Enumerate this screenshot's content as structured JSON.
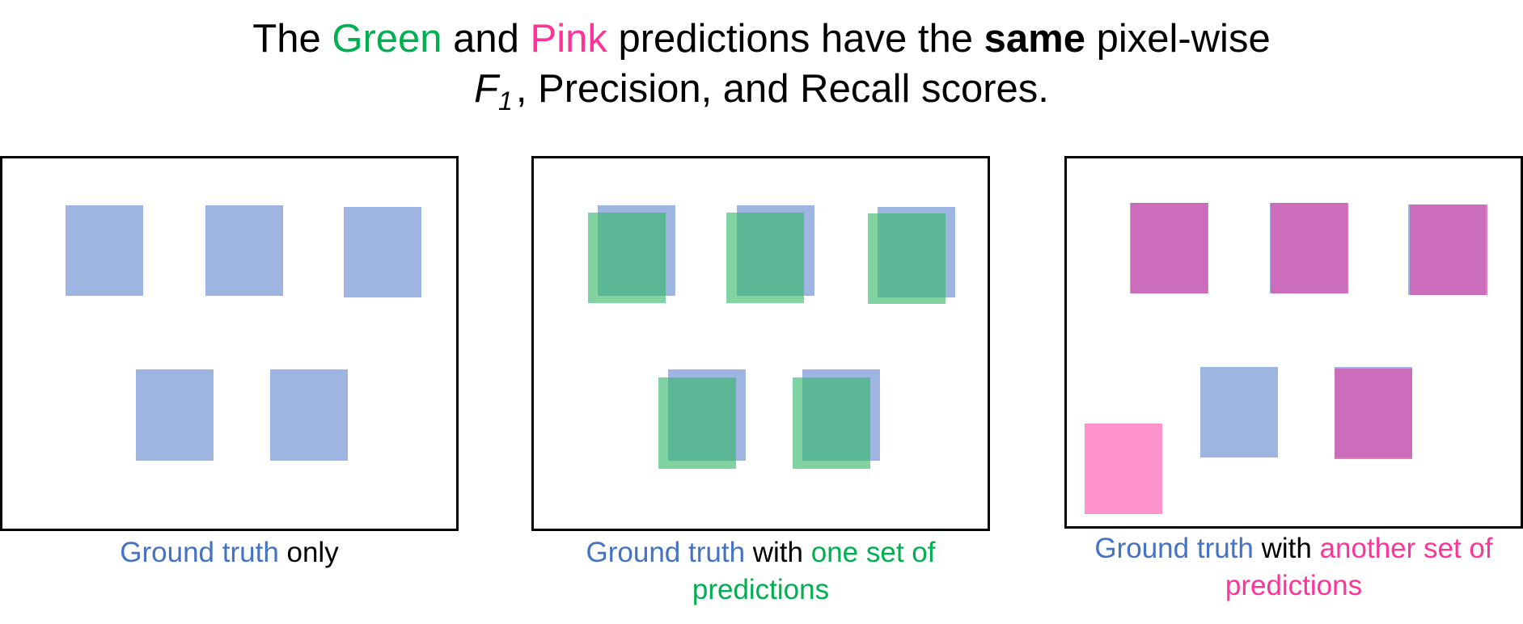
{
  "title": {
    "line1": {
      "prefix": "The ",
      "green_word": "Green",
      "and": " and ",
      "pink_word": "Pink",
      "middle": " predictions have the ",
      "bold_word": "same",
      "suffix": " pixel-wise"
    },
    "line2": {
      "f_symbol": "F",
      "f_subscript": "1",
      "rest": ", Precision, and Recall scores."
    }
  },
  "panels": [
    {
      "caption": {
        "part1": "Ground truth",
        "part2": " only"
      }
    },
    {
      "caption": {
        "part1": "Ground truth",
        "part2": " with ",
        "part3": "one set of",
        "line2": "predictions"
      }
    },
    {
      "caption": {
        "part1": "Ground truth",
        "part2": " with ",
        "part3": "another set of",
        "line2": "predictions"
      }
    }
  ],
  "colors": {
    "ground_truth": "#4472C4",
    "green": "#00B050",
    "pink": "#FF3399",
    "text": "#000000"
  }
}
